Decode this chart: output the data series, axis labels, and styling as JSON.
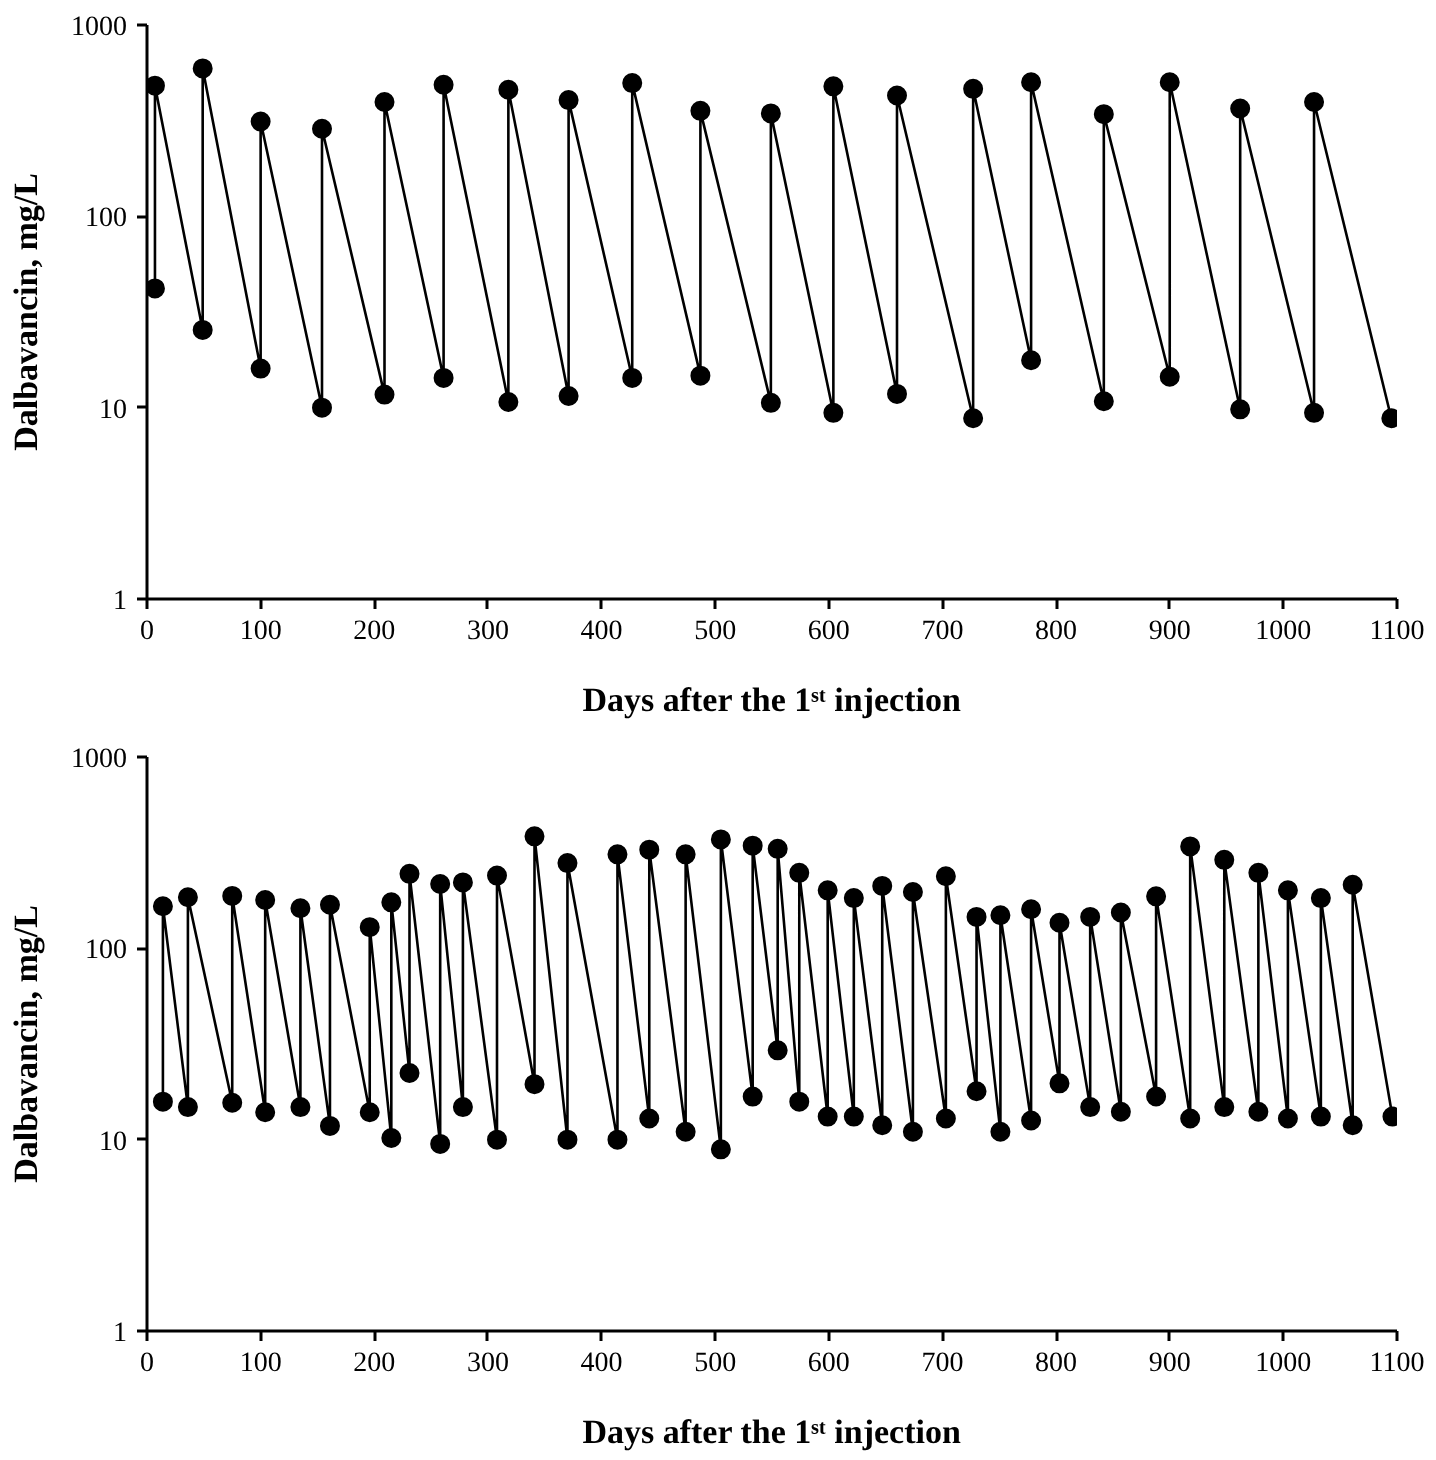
{
  "chart_data": [
    {
      "type": "line",
      "xlabel": "Days after the 1ˢᵗ injection",
      "ylabel": "Dalbavancin, mg/L",
      "log": "y",
      "xlim": [
        0,
        1100
      ],
      "xticks": [
        0,
        100,
        200,
        300,
        400,
        500,
        600,
        700,
        800,
        900,
        1000,
        1100
      ],
      "ylim": [
        1,
        1000
      ],
      "yticks": [
        1,
        10,
        100,
        1000
      ],
      "grid": false,
      "marker": "circle",
      "line_style": "solid",
      "series": [
        {
          "color": "#000000",
          "x": [
            7,
            7,
            49,
            49,
            100,
            100,
            154,
            154,
            209,
            209,
            261,
            261,
            318,
            318,
            371,
            371,
            427,
            427,
            487,
            487,
            549,
            549,
            604,
            604,
            660,
            660,
            727,
            727,
            778,
            778,
            842,
            842,
            900,
            900,
            962,
            962,
            1027,
            1027,
            1095
          ],
          "values": [
            42,
            482,
            25.5,
            593,
            16,
            313,
            10,
            287,
            11.7,
            396,
            14.3,
            487,
            10.7,
            459,
            11.5,
            405,
            14.3,
            497,
            14.7,
            356,
            10.6,
            345,
            9.4,
            478,
            11.8,
            428,
            8.8,
            464,
            17.7,
            502,
            10.8,
            342,
            14.5,
            502,
            9.8,
            366,
            9.4,
            396,
            8.8
          ]
        }
      ]
    },
    {
      "type": "line",
      "xlabel": "Days after the 1ˢᵗ injection",
      "ylabel": "Dalbavancin, mg/L",
      "log": "y",
      "xlim": [
        0,
        1100
      ],
      "xticks": [
        0,
        100,
        200,
        300,
        400,
        500,
        600,
        700,
        800,
        900,
        1000,
        1100
      ],
      "ylim": [
        1,
        1000
      ],
      "yticks": [
        1,
        10,
        100,
        1000
      ],
      "grid": false,
      "marker": "circle",
      "line_style": "solid",
      "series": [
        {
          "color": "#000000",
          "x": [
            14,
            14,
            36,
            36,
            75,
            75,
            104,
            104,
            135,
            135,
            161,
            161,
            196,
            196,
            215,
            215,
            231,
            231,
            258,
            258,
            278,
            278,
            308,
            308,
            341,
            341,
            370,
            370,
            414,
            414,
            442,
            442,
            474,
            474,
            505,
            505,
            533,
            533,
            555,
            555,
            574,
            574,
            599,
            599,
            622,
            622,
            647,
            647,
            674,
            674,
            703,
            703,
            730,
            730,
            751,
            751,
            778,
            778,
            803,
            803,
            830,
            830,
            857,
            857,
            888,
            888,
            918,
            918,
            948,
            948,
            978,
            978,
            1004,
            1004,
            1033,
            1033,
            1061,
            1061,
            1096
          ],
          "values": [
            15.8,
            166,
            14.8,
            185,
            15.6,
            188,
            13.9,
            179,
            14.8,
            162,
            11.8,
            169,
            13.9,
            129,
            10.2,
            174,
            22.3,
            245,
            9.5,
            217,
            14.8,
            221,
            10,
            240,
            19.5,
            385,
            10,
            279,
            10,
            310,
            12.9,
            328,
            11,
            310,
            8.9,
            371,
            16.8,
            344,
            29.3,
            331,
            15.8,
            248,
            13.2,
            201,
            13.2,
            183,
            11.9,
            212,
            11,
            197,
            12.9,
            238,
            17.9,
            146,
            11,
            149,
            12.6,
            160,
            19.7,
            136,
            14.8,
            146,
            14,
            154,
            16.8,
            187,
            12.9,
            341,
            14.8,
            290,
            14,
            248,
            12.9,
            201,
            13.2,
            183,
            11.9,
            215,
            13.2
          ]
        }
      ]
    }
  ]
}
